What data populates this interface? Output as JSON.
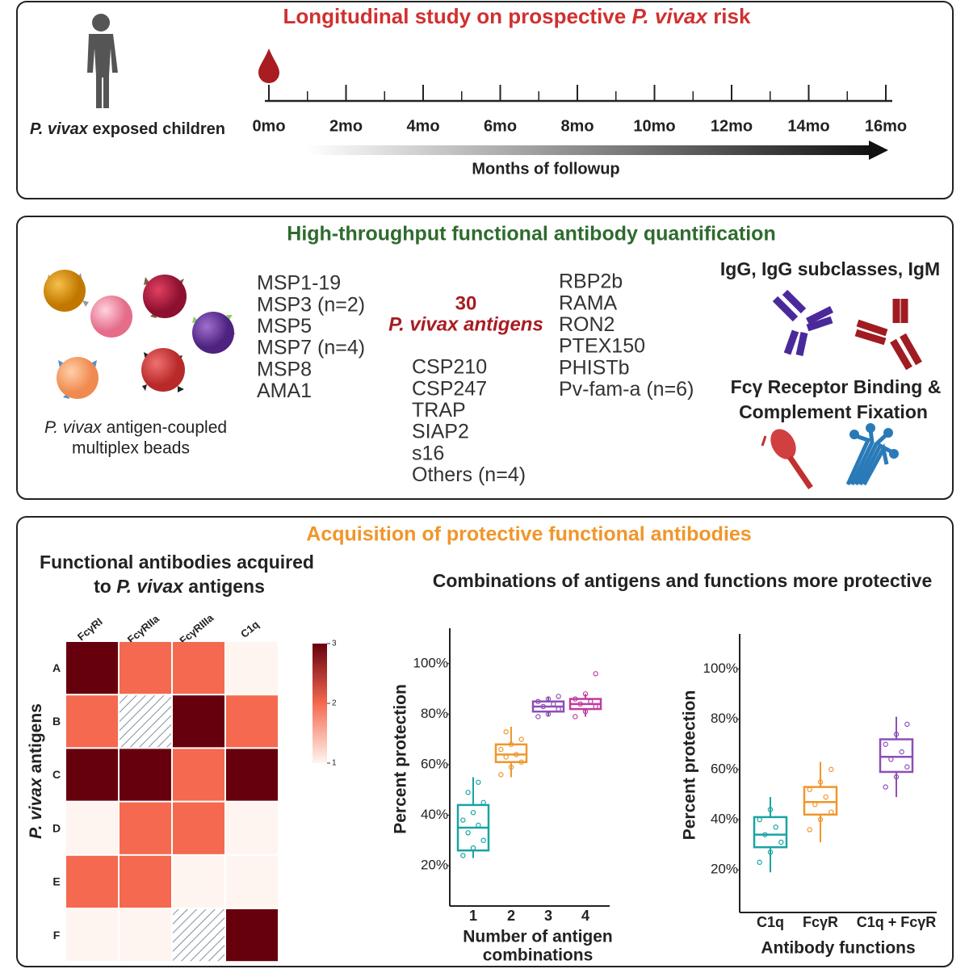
{
  "panel1": {
    "title": {
      "pre": "Longitudinal study on prospective ",
      "italic": "P. vivax",
      "post": " risk"
    },
    "subject": {
      "italic": "P. vivax",
      "rest": " exposed children"
    },
    "timeline": [
      "0mo",
      "2mo",
      "4mo",
      "6mo",
      "8mo",
      "10mo",
      "12mo",
      "14mo",
      "16mo"
    ],
    "axis_label": "Months of followup"
  },
  "panel2": {
    "title": "High-throughput functional antibody quantification",
    "beads_caption": {
      "italic": "P. vivax",
      "rest": "  antigen-coupled",
      "line2": "multiplex beads"
    },
    "antigens_left": [
      "MSP1-19",
      "MSP3 (n=2)",
      "MSP5",
      "MSP7 (n=4)",
      "MSP8",
      "AMA1"
    ],
    "antigens_center_count": "30",
    "antigens_center_label": "P. vivax antigens",
    "antigens_middle": [
      "CSP210",
      "CSP247",
      "TRAP",
      "SIAP2",
      "s16",
      "Others (n=4)"
    ],
    "antigens_right": [
      "RBP2b",
      "RAMA",
      "RON2",
      "PTEX150",
      "PHISTb",
      "Pv-fam-a (n=6)"
    ],
    "isotypes": "IgG, IgG subclasses, IgM",
    "functions": [
      "Fcγ Receptor Binding &",
      "Complement Fixation"
    ]
  },
  "panel3": {
    "title": "Acquisition of protective functional antibodies",
    "heatmap_title": {
      "line1": "Functional antibodies acquired",
      "pre": "to ",
      "italic": "P. vivax",
      "post": " antigens"
    },
    "combo_title": "Combinations of antigens and functions more protective",
    "heatmap": {
      "type": "heatmap",
      "columns": [
        "FcγRI",
        "FcγRIIa",
        "FcγRIIIa",
        "C1q"
      ],
      "rows": [
        "A",
        "B",
        "C",
        "D",
        "E",
        "F"
      ],
      "y_label": {
        "italic": "P. vivax",
        "rest": " antigens"
      },
      "values": [
        [
          3,
          2,
          2,
          1
        ],
        [
          2,
          null,
          3,
          2
        ],
        [
          3,
          3,
          2,
          3
        ],
        [
          1,
          2,
          2,
          1
        ],
        [
          2,
          2,
          1,
          1
        ],
        [
          1,
          1,
          null,
          3
        ]
      ],
      "colorscale": [
        "#fff5f0",
        "#f4694f",
        "#67000d"
      ],
      "clim": [
        1,
        3
      ],
      "cticks": [
        1,
        2,
        3
      ]
    },
    "box_charts": [
      {
        "type": "box",
        "y_label": "Percent protection",
        "x_label": [
          "Number of antigen",
          "combinations"
        ],
        "categories": [
          "1",
          "2",
          "3",
          "4"
        ],
        "ylim": [
          4,
          114
        ],
        "yticks": [
          {
            "value": 20,
            "label": "20%"
          },
          {
            "value": 40,
            "label": "40%"
          },
          {
            "value": 60,
            "label": "60%"
          },
          {
            "value": 80,
            "label": "80%"
          },
          {
            "value": 100,
            "label": "100%"
          }
        ],
        "series": [
          {
            "color": "#1aa3a3",
            "whisker_low": 23,
            "q1": 26,
            "median": 35,
            "q3": 44,
            "whisker_high": 55,
            "points": [
              24,
              27,
              30,
              33,
              36,
              38,
              41,
              45,
              49,
              53
            ]
          },
          {
            "color": "#f0962a",
            "whisker_low": 55,
            "q1": 61,
            "median": 64,
            "q3": 68,
            "whisker_high": 75,
            "points": [
              56,
              59,
              61,
              63,
              64,
              66,
              68,
              70,
              73
            ]
          },
          {
            "color": "#8e4fb5",
            "whisker_low": 79,
            "q1": 81,
            "median": 83,
            "q3": 85,
            "whisker_high": 87,
            "points": [
              79,
              80,
              82,
              83,
              84,
              85,
              86,
              87
            ]
          },
          {
            "color": "#c03ca0",
            "whisker_low": 79,
            "q1": 82,
            "median": 84,
            "q3": 86,
            "whisker_high": 88,
            "points": [
              79,
              81,
              83,
              84,
              85,
              86,
              88,
              96
            ]
          }
        ]
      },
      {
        "type": "box",
        "y_label": "Percent protection",
        "x_label": [
          "Antibody functions"
        ],
        "categories": [
          "C1q",
          "FcγR",
          "C1q + FcγR"
        ],
        "ylim": [
          3,
          114
        ],
        "yticks": [
          {
            "value": 20,
            "label": "20%"
          },
          {
            "value": 40,
            "label": "40%"
          },
          {
            "value": 60,
            "label": "60%"
          },
          {
            "value": 80,
            "label": "80%"
          },
          {
            "value": 100,
            "label": "100%"
          }
        ],
        "series": [
          {
            "color": "#1aa3a3",
            "whisker_low": 19,
            "q1": 29,
            "median": 34,
            "q3": 41,
            "whisker_high": 49,
            "points": [
              23,
              27,
              31,
              34,
              37,
              40,
              44
            ]
          },
          {
            "color": "#f0962a",
            "whisker_low": 31,
            "q1": 42,
            "median": 47,
            "q3": 53,
            "whisker_high": 63,
            "points": [
              36,
              40,
              43,
              46,
              49,
              52,
              55,
              60
            ]
          },
          {
            "color": "#8e4fb5",
            "whisker_low": 49,
            "q1": 59,
            "median": 65,
            "q3": 72,
            "whisker_high": 81,
            "points": [
              53,
              57,
              61,
              64,
              67,
              70,
              74,
              78
            ]
          }
        ]
      }
    ]
  }
}
